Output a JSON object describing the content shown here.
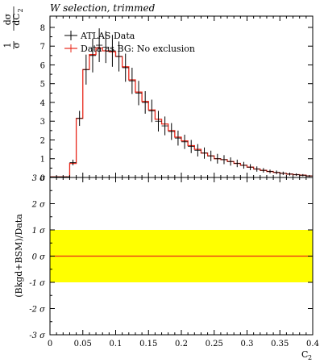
{
  "chart_data": [
    {
      "type": "histogram",
      "title": "W selection, trimmed",
      "ylabel_parts": [
        "1",
        "dσ",
        "σ",
        "dC",
        "2"
      ],
      "yticks": [
        "0",
        "1",
        "2",
        "3",
        "4",
        "5",
        "6",
        "7",
        "8"
      ],
      "ylim": [
        0,
        8.6
      ],
      "xlim": [
        0,
        0.4
      ],
      "legend_placement": "top-left",
      "legend": [
        {
          "name": "ATLAS Data",
          "color": "#000000"
        },
        {
          "name": "Data as BG: No exclusion",
          "color": "#e8271a"
        }
      ],
      "bin_edges": [
        0,
        0.02,
        0.03,
        0.04,
        0.05,
        0.06,
        0.07,
        0.08,
        0.09,
        0.1,
        0.11,
        0.12,
        0.13,
        0.14,
        0.15,
        0.16,
        0.17,
        0.18,
        0.19,
        0.2,
        0.21,
        0.22,
        0.23,
        0.24,
        0.25,
        0.26,
        0.27,
        0.28,
        0.29,
        0.3,
        0.31,
        0.32,
        0.33,
        0.34,
        0.35,
        0.36,
        0.37,
        0.38,
        0.39,
        0.4
      ],
      "series": [
        {
          "name": "ATLAS Data",
          "values": [
            0.03,
            0.03,
            0.8,
            3.15,
            5.75,
            6.5,
            7.05,
            6.95,
            6.75,
            6.45,
            5.85,
            5.15,
            4.5,
            4.0,
            3.55,
            3.0,
            2.75,
            2.45,
            2.1,
            1.9,
            1.65,
            1.45,
            1.3,
            1.15,
            1.0,
            0.95,
            0.85,
            0.75,
            0.65,
            0.55,
            0.45,
            0.38,
            0.32,
            0.27,
            0.22,
            0.18,
            0.15,
            0.12,
            0.08
          ],
          "errors": [
            0.02,
            0.02,
            0.15,
            0.4,
            0.8,
            0.9,
            0.9,
            0.85,
            0.85,
            0.8,
            0.75,
            0.7,
            0.65,
            0.6,
            0.6,
            0.55,
            0.5,
            0.45,
            0.4,
            0.38,
            0.35,
            0.33,
            0.3,
            0.28,
            0.26,
            0.24,
            0.22,
            0.2,
            0.18,
            0.16,
            0.14,
            0.12,
            0.1,
            0.1,
            0.09,
            0.08,
            0.07,
            0.06,
            0.05
          ]
        },
        {
          "name": "Data as BG: No exclusion",
          "values": [
            0.03,
            0.03,
            0.75,
            3.15,
            5.75,
            6.55,
            6.9,
            6.75,
            6.7,
            6.45,
            5.9,
            5.2,
            4.55,
            4.05,
            3.6,
            3.1,
            2.85,
            2.5,
            2.15,
            1.95,
            1.7,
            1.5,
            1.3,
            1.15,
            1.0,
            0.95,
            0.85,
            0.75,
            0.65,
            0.55,
            0.45,
            0.38,
            0.32,
            0.27,
            0.22,
            0.18,
            0.15,
            0.12,
            0.08
          ]
        }
      ]
    },
    {
      "type": "line",
      "ylabel": "(Bkgd+BSM)/Data",
      "yticks": [
        "-3 σ",
        "-2 σ",
        "-1 σ",
        "0 σ",
        "1 σ",
        "2 σ",
        "3 σ"
      ],
      "ylim": [
        -3,
        3
      ],
      "xlabel_parts": [
        "C",
        "2"
      ],
      "xticks": [
        "0",
        "0.05",
        "0.1",
        "0.15",
        "0.2",
        "0.25",
        "0.3",
        "0.35",
        "0.4"
      ],
      "xlim": [
        0,
        0.4
      ],
      "band": [
        -1,
        1
      ],
      "band_color": "#ffff00",
      "line_color": "#e8271a",
      "x": [
        0,
        0.4
      ],
      "y": [
        0,
        0
      ]
    }
  ]
}
